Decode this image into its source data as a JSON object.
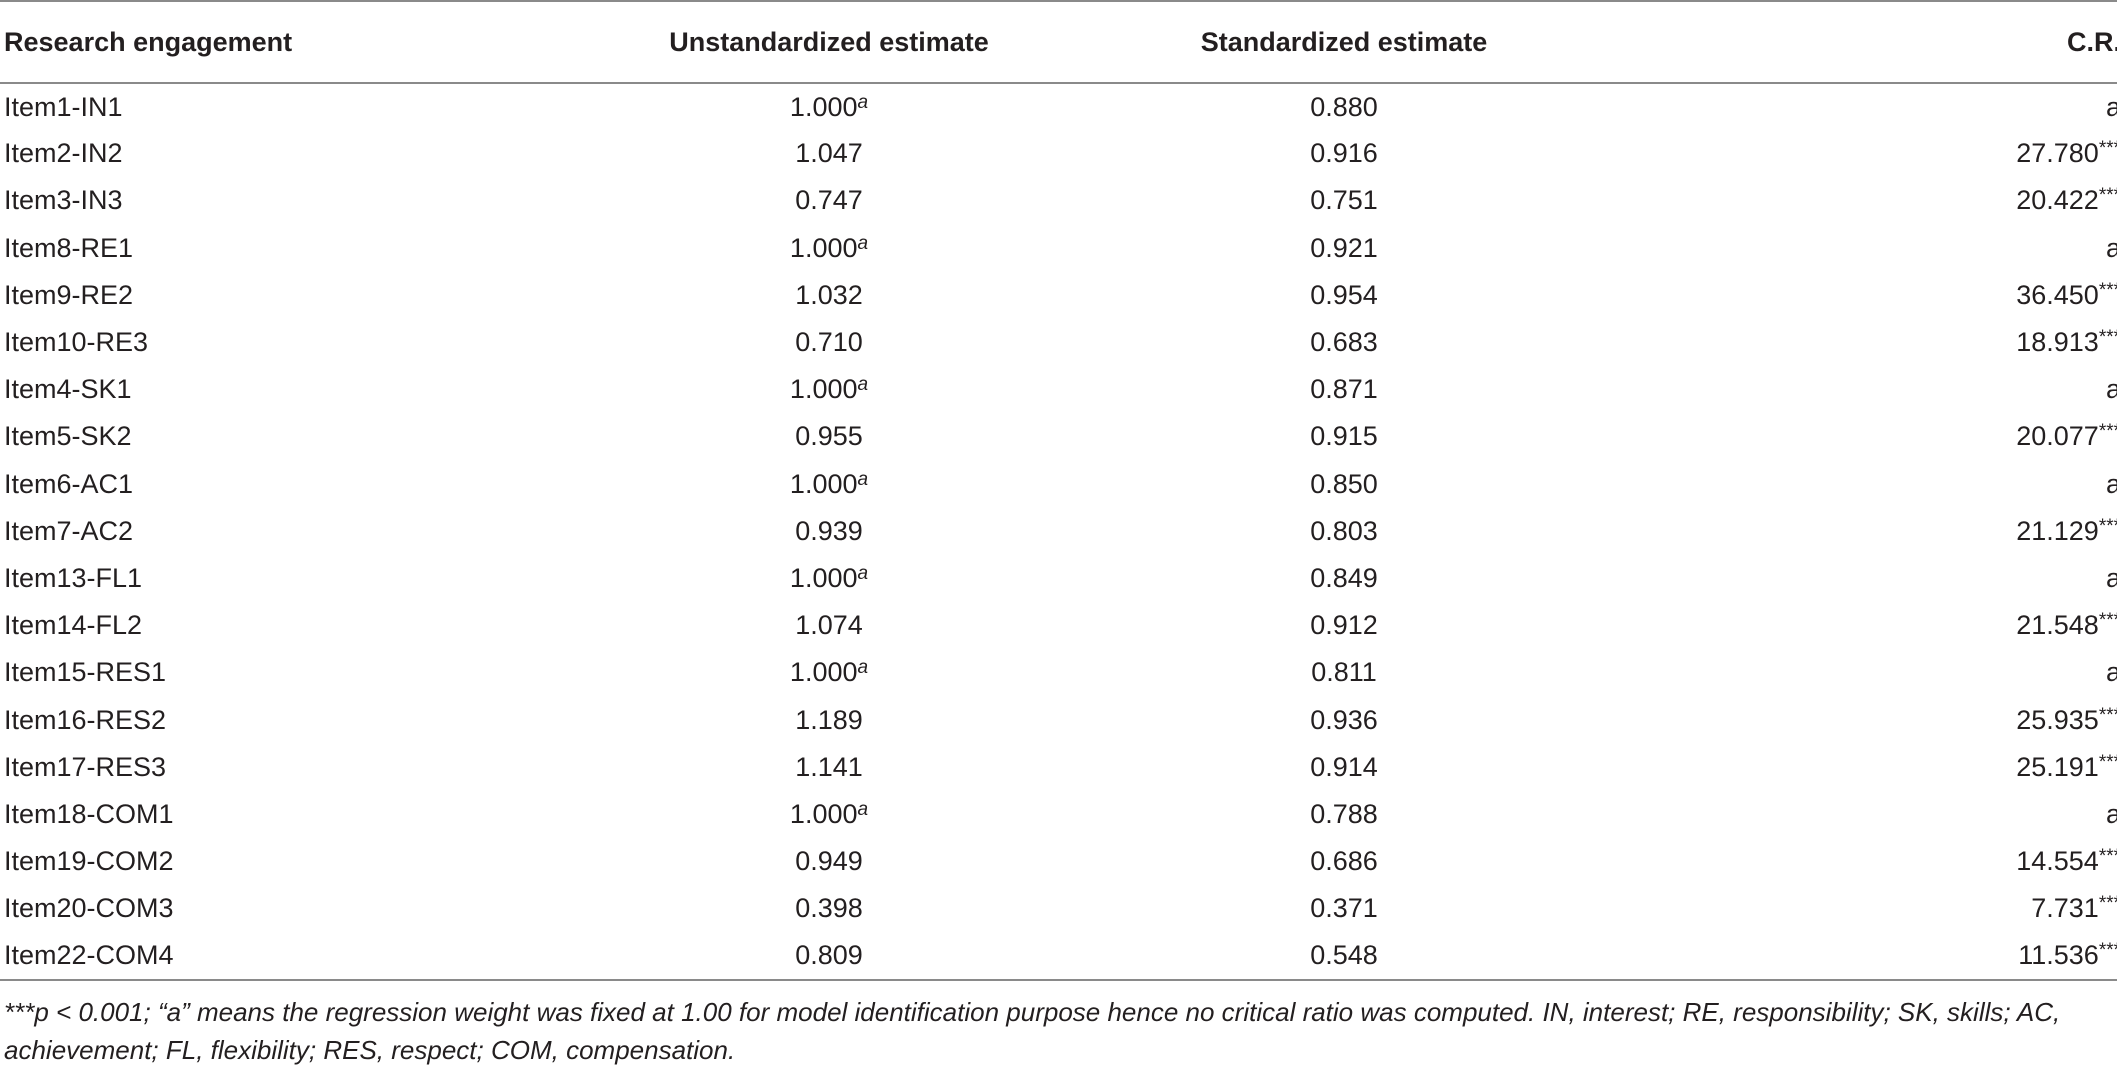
{
  "table": {
    "headers": {
      "item": "Research engagement",
      "unstandardized": "Unstandardized estimate",
      "standardized": "Standardized estimate",
      "cr": "C.R."
    },
    "rows": [
      {
        "item": "Item1-IN1",
        "unstd": "1.000",
        "unstd_sup": "a",
        "std": "0.880",
        "cr": "a",
        "cr_sig": ""
      },
      {
        "item": "Item2-IN2",
        "unstd": "1.047",
        "unstd_sup": "",
        "std": "0.916",
        "cr": "27.780",
        "cr_sig": "***"
      },
      {
        "item": "Item3-IN3",
        "unstd": "0.747",
        "unstd_sup": "",
        "std": "0.751",
        "cr": "20.422",
        "cr_sig": "***"
      },
      {
        "item": "Item8-RE1",
        "unstd": "1.000",
        "unstd_sup": "a",
        "std": "0.921",
        "cr": "a",
        "cr_sig": ""
      },
      {
        "item": "Item9-RE2",
        "unstd": "1.032",
        "unstd_sup": "",
        "std": "0.954",
        "cr": "36.450",
        "cr_sig": "***"
      },
      {
        "item": "Item10-RE3",
        "unstd": "0.710",
        "unstd_sup": "",
        "std": "0.683",
        "cr": "18.913",
        "cr_sig": "***"
      },
      {
        "item": "Item4-SK1",
        "unstd": "1.000",
        "unstd_sup": "a",
        "std": "0.871",
        "cr": "a",
        "cr_sig": ""
      },
      {
        "item": "Item5-SK2",
        "unstd": "0.955",
        "unstd_sup": "",
        "std": "0.915",
        "cr": "20.077",
        "cr_sig": "***"
      },
      {
        "item": "Item6-AC1",
        "unstd": "1.000",
        "unstd_sup": "a",
        "std": "0.850",
        "cr": "a",
        "cr_sig": ""
      },
      {
        "item": "Item7-AC2",
        "unstd": "0.939",
        "unstd_sup": "",
        "std": "0.803",
        "cr": "21.129",
        "cr_sig": "***"
      },
      {
        "item": "Item13-FL1",
        "unstd": "1.000",
        "unstd_sup": "a",
        "std": "0.849",
        "cr": "a",
        "cr_sig": ""
      },
      {
        "item": "Item14-FL2",
        "unstd": "1.074",
        "unstd_sup": "",
        "std": "0.912",
        "cr": "21.548",
        "cr_sig": "***"
      },
      {
        "item": "Item15-RES1",
        "unstd": "1.000",
        "unstd_sup": "a",
        "std": "0.811",
        "cr": "a",
        "cr_sig": ""
      },
      {
        "item": "Item16-RES2",
        "unstd": "1.189",
        "unstd_sup": "",
        "std": "0.936",
        "cr": "25.935",
        "cr_sig": "***"
      },
      {
        "item": "Item17-RES3",
        "unstd": "1.141",
        "unstd_sup": "",
        "std": "0.914",
        "cr": "25.191",
        "cr_sig": "***"
      },
      {
        "item": "Item18-COM1",
        "unstd": "1.000",
        "unstd_sup": "a",
        "std": "0.788",
        "cr": "a",
        "cr_sig": ""
      },
      {
        "item": "Item19-COM2",
        "unstd": "0.949",
        "unstd_sup": "",
        "std": "0.686",
        "cr": "14.554",
        "cr_sig": "***"
      },
      {
        "item": "Item20-COM3",
        "unstd": "0.398",
        "unstd_sup": "",
        "std": "0.371",
        "cr": "7.731",
        "cr_sig": "***"
      },
      {
        "item": "Item22-COM4",
        "unstd": "0.809",
        "unstd_sup": "",
        "std": "0.548",
        "cr": "11.536",
        "cr_sig": "***"
      }
    ]
  },
  "footnote": "***p < 0.001; “a” means the regression weight was fixed at 1.00 for model identification purpose hence no critical ratio was computed. IN, interest; RE, responsibility; SK, skills; AC, achievement; FL, flexibility; RES, respect; COM, compensation."
}
